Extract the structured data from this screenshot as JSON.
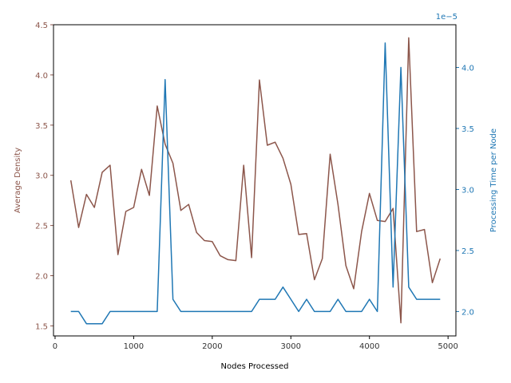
{
  "chart_data": {
    "type": "line",
    "title": "",
    "xlabel": "Nodes Processed",
    "xlim": [
      -20,
      5100
    ],
    "x_ticks": [
      0,
      1000,
      2000,
      3000,
      4000,
      5000
    ],
    "x_tick_labels": [
      "0",
      "1000",
      "2000",
      "3000",
      "4000",
      "5000"
    ],
    "grid": false,
    "legend": "none",
    "x": [
      200,
      300,
      400,
      500,
      600,
      700,
      800,
      900,
      1000,
      1100,
      1200,
      1300,
      1400,
      1500,
      1600,
      1700,
      1800,
      1900,
      2000,
      2100,
      2200,
      2300,
      2400,
      2500,
      2600,
      2700,
      2800,
      2900,
      3000,
      3100,
      3200,
      3300,
      3400,
      3500,
      3600,
      3700,
      3800,
      3900,
      4000,
      4100,
      4200,
      4300,
      4400,
      4500,
      4600,
      4700,
      4800,
      4900
    ],
    "left_axis": {
      "label": "Average Density",
      "color": "#8c564b",
      "ylim": [
        1.4,
        4.5
      ],
      "ticks": [
        1.5,
        2.0,
        2.5,
        3.0,
        3.5,
        4.0,
        4.5
      ],
      "tick_labels": [
        "1.5",
        "2.0",
        "2.5",
        "3.0",
        "3.5",
        "4.0",
        "4.5"
      ]
    },
    "right_axis": {
      "label": "Processing Time per Node",
      "color": "#1f77b4",
      "offset_label": "1e−5",
      "ylim": [
        1.8,
        4.35
      ],
      "ticks": [
        2.0,
        2.5,
        3.0,
        3.5,
        4.0
      ],
      "tick_labels": [
        "2.0",
        "2.5",
        "3.0",
        "3.5",
        "4.0"
      ]
    },
    "series": [
      {
        "axis": "left",
        "color": "#8c564b",
        "values": [
          2.95,
          2.48,
          2.81,
          2.68,
          3.03,
          3.1,
          2.21,
          2.64,
          2.68,
          3.06,
          2.8,
          3.69,
          3.31,
          3.12,
          2.65,
          2.71,
          2.43,
          2.35,
          2.34,
          2.2,
          2.16,
          2.15,
          3.1,
          2.18,
          3.95,
          3.3,
          3.33,
          3.17,
          2.91,
          2.41,
          2.42,
          1.96,
          2.17,
          3.21,
          2.71,
          2.1,
          1.87,
          2.44,
          2.82,
          2.55,
          2.54,
          2.67,
          1.53,
          4.37,
          2.44,
          2.46,
          1.93,
          2.17
        ]
      },
      {
        "axis": "right",
        "color": "#1f77b4",
        "values": [
          2.0,
          2.0,
          1.9,
          1.9,
          1.9,
          2.0,
          2.0,
          2.0,
          2.0,
          2.0,
          2.0,
          2.0,
          3.9,
          2.1,
          2.0,
          2.0,
          2.0,
          2.0,
          2.0,
          2.0,
          2.0,
          2.0,
          2.0,
          2.0,
          2.1,
          2.1,
          2.1,
          2.2,
          2.1,
          2.0,
          2.1,
          2.0,
          2.0,
          2.0,
          2.1,
          2.0,
          2.0,
          2.0,
          2.1,
          2.0,
          4.2,
          2.2,
          4.0,
          2.2,
          2.1,
          2.1,
          2.1,
          2.1
        ]
      }
    ]
  }
}
